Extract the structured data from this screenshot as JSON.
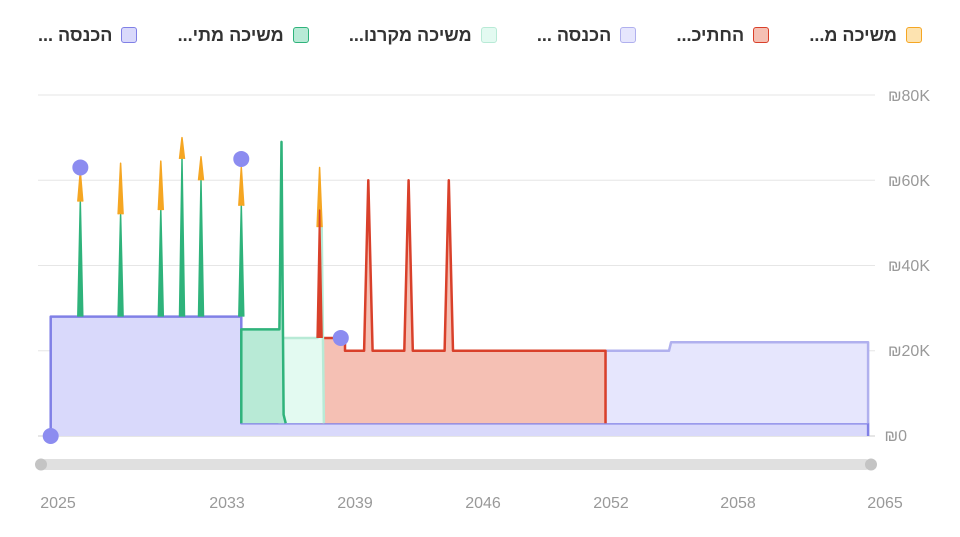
{
  "legend": {
    "items": [
      {
        "label": "הכנסה ...",
        "fill": "#d9d9fb",
        "stroke": "#8080e6"
      },
      {
        "label": "משיכה מתי...",
        "fill": "#b8ead6",
        "stroke": "#2fb37b"
      },
      {
        "label": "משיכה מקרנו...",
        "fill": "#e3faf1",
        "stroke": "#b8ead6"
      },
      {
        "label": "הכנסה ...",
        "fill": "#e6e6fd",
        "stroke": "#b0b0ee"
      },
      {
        "label": "החתיכ...",
        "fill": "#f5c0b4",
        "stroke": "#d9402a"
      },
      {
        "label": "משיכה מ...",
        "fill": "#fde3b0",
        "stroke": "#f5a623"
      }
    ]
  },
  "chart_data": {
    "type": "area",
    "title": "",
    "xlabel": "",
    "ylabel": "",
    "xlim": [
      2025,
      2065
    ],
    "ylim": [
      0,
      80000
    ],
    "x_ticks": [
      "2025",
      "2033",
      "2039",
      "2046",
      "2052",
      "2058",
      "2065"
    ],
    "y_ticks": [
      "₪80K",
      "₪60K",
      "₪40K",
      "₪20K",
      "₪0"
    ],
    "grid": true,
    "legend_position": "top",
    "series": [
      {
        "label": "הכנסה ...",
        "style": "area",
        "fill": "#d9d9fb",
        "stroke": "#8080e6",
        "points": [
          [
            2025.6,
            0
          ],
          [
            2025.6,
            28000
          ],
          [
            2034.6,
            28000
          ],
          [
            2034.6,
            3000
          ],
          [
            2064.2,
            3000
          ],
          [
            2064.2,
            0
          ]
        ]
      },
      {
        "label": "הכנסה ...",
        "style": "area",
        "fill": "#e6e6fd",
        "stroke": "#b0b0ee",
        "points": [
          [
            2051.8,
            3000
          ],
          [
            2051.8,
            20000
          ],
          [
            2054.8,
            20000
          ],
          [
            2054.9,
            22000
          ],
          [
            2064.2,
            22000
          ],
          [
            2064.2,
            3000
          ]
        ]
      },
      {
        "label": "החתיכ...",
        "style": "area",
        "fill": "#f5c0b4",
        "stroke": "#d9402a",
        "points": [
          [
            2038.4,
            3000
          ],
          [
            2038.4,
            23000
          ],
          [
            2039.5,
            23000
          ],
          [
            2039.5,
            20000
          ],
          [
            2040.4,
            20000
          ],
          [
            2040.6,
            60000
          ],
          [
            2040.8,
            20000
          ],
          [
            2042.3,
            20000
          ],
          [
            2042.5,
            60000
          ],
          [
            2042.7,
            20000
          ],
          [
            2044.2,
            20000
          ],
          [
            2044.4,
            60000
          ],
          [
            2044.6,
            20000
          ],
          [
            2051.8,
            20000
          ],
          [
            2051.8,
            3000
          ]
        ]
      },
      {
        "label": "משיכה מקרנו...",
        "style": "area",
        "fill": "#e3faf1",
        "stroke": "#b8ead6",
        "points": [
          [
            2036.4,
            3000
          ],
          [
            2036.4,
            23000
          ],
          [
            2038.2,
            23000
          ],
          [
            2038.4,
            49000
          ],
          [
            2038.5,
            3000
          ]
        ]
      },
      {
        "label": "משיכה מתי...",
        "style": "area",
        "fill": "#b8ead6",
        "stroke": "#2fb37b",
        "points": [
          [
            2034.6,
            3000
          ],
          [
            2034.6,
            25000
          ],
          [
            2036.4,
            25000
          ],
          [
            2036.5,
            69000
          ],
          [
            2036.6,
            5000
          ],
          [
            2036.7,
            3000
          ]
        ]
      },
      {
        "label": "משיכה מתי...",
        "style": "spikes",
        "stroke": "#2fb37b",
        "base": 28000,
        "spikes": [
          [
            2027.0,
            55000
          ],
          [
            2028.9,
            52000
          ],
          [
            2030.8,
            53000
          ],
          [
            2031.8,
            65000
          ],
          [
            2032.7,
            60000
          ],
          [
            2034.6,
            54000
          ]
        ]
      },
      {
        "label": "משיכה מ...",
        "style": "spikes",
        "stroke": "#f5a623",
        "spikes": [
          [
            2027.0,
            55000,
            62000
          ],
          [
            2028.9,
            52000,
            64000
          ],
          [
            2030.8,
            53000,
            64500
          ],
          [
            2031.8,
            65000,
            70000
          ],
          [
            2032.7,
            60000,
            65500
          ],
          [
            2034.6,
            54000,
            63000
          ],
          [
            2038.3,
            49000,
            63000
          ]
        ]
      },
      {
        "label": "החתיכ...",
        "style": "spikes",
        "stroke": "#d9402a",
        "spikes": [
          [
            2038.3,
            23000,
            53000
          ]
        ]
      }
    ],
    "markers": [
      {
        "x": 2025.6,
        "y": 0
      },
      {
        "x": 2027.0,
        "y": 63000
      },
      {
        "x": 2034.6,
        "y": 65000
      },
      {
        "x": 2039.3,
        "y": 23000
      }
    ],
    "marker_color": "#8c8cf0"
  }
}
